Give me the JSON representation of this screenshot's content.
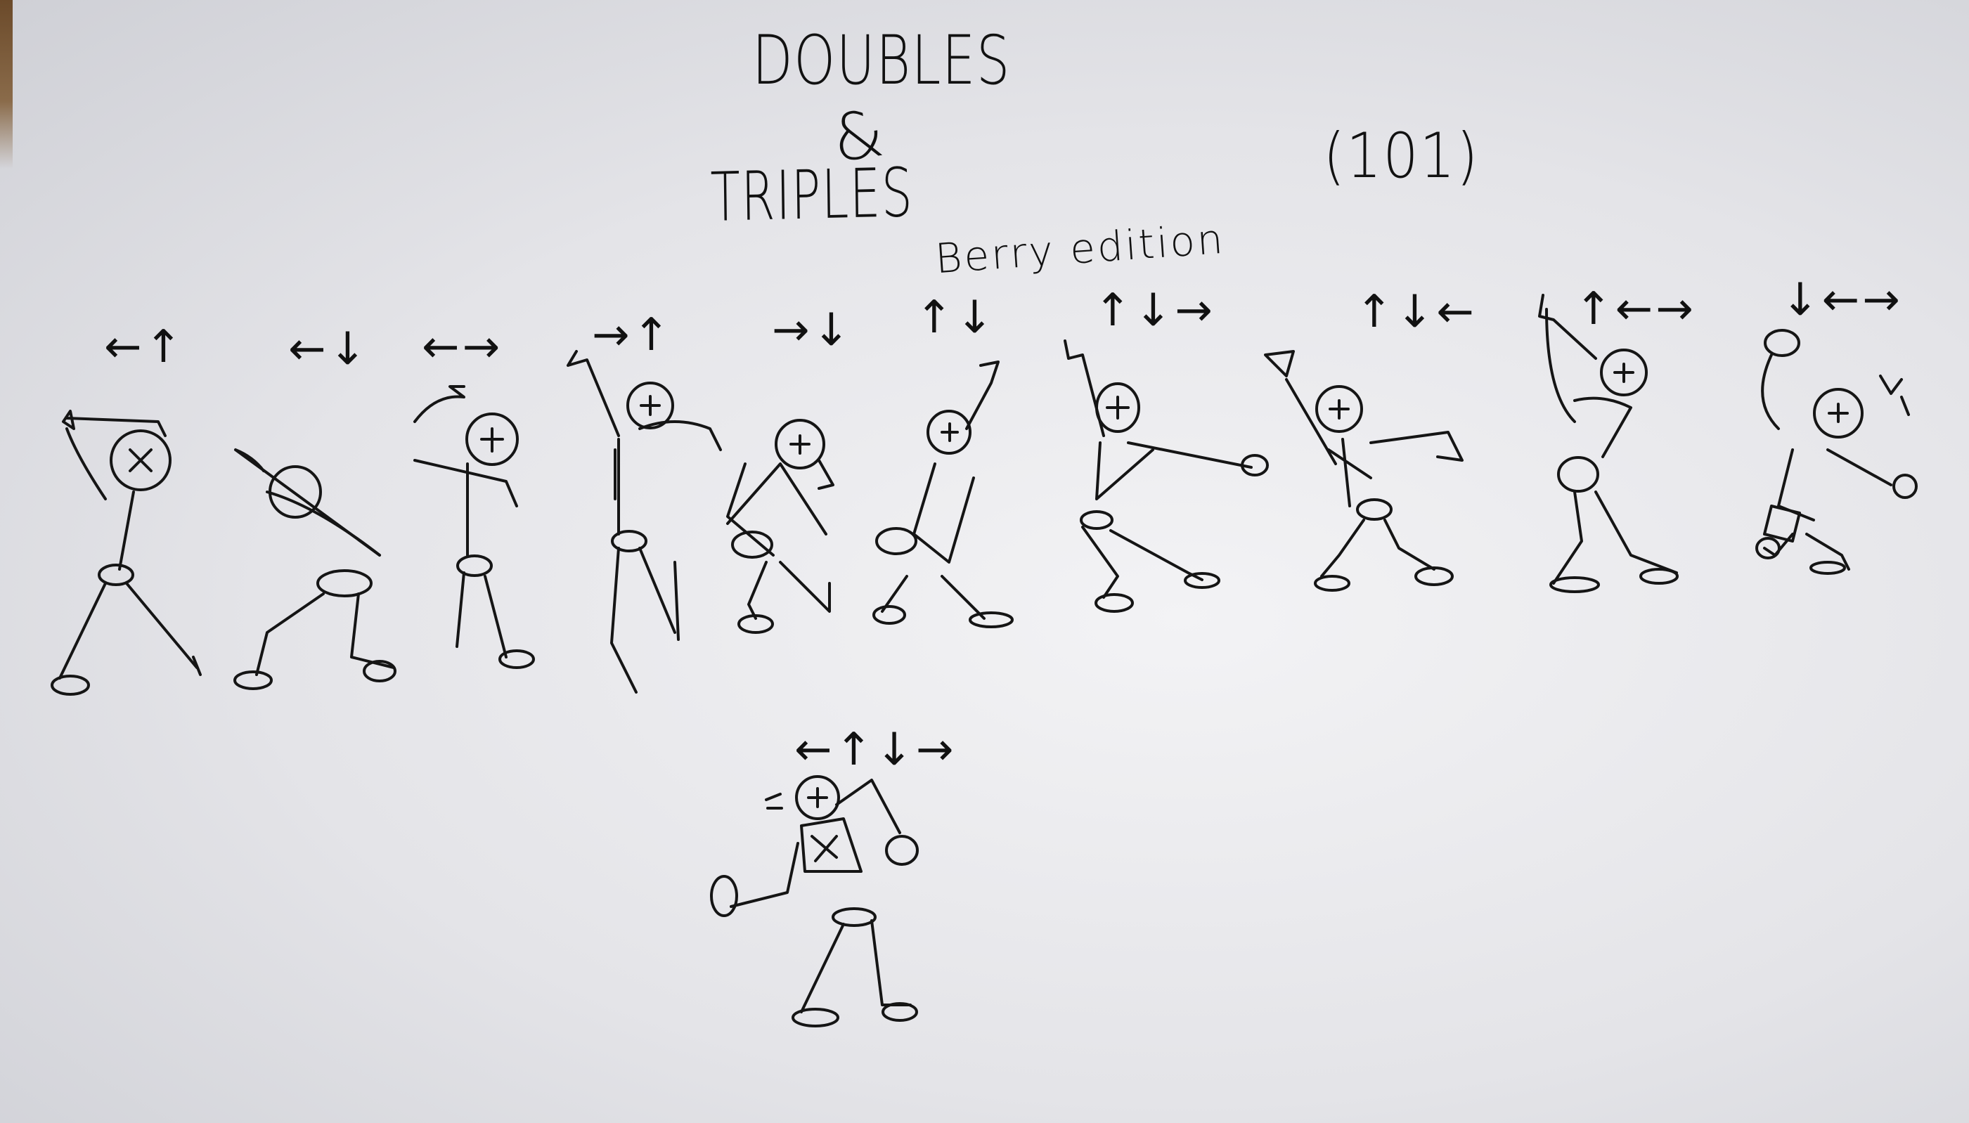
{
  "sheet": {
    "title_line1": "DOUBLES",
    "title_ampersand": "&",
    "title_line2": "TRIPLES",
    "counter": "(101)",
    "edition": "Berry edition"
  },
  "poses": [
    {
      "arrows": "←↑"
    },
    {
      "arrows": "←↓"
    },
    {
      "arrows": "←→"
    },
    {
      "arrows": "→↑"
    },
    {
      "arrows": "→↓"
    },
    {
      "arrows": "↑↓"
    },
    {
      "arrows": "↑↓→"
    },
    {
      "arrows": "↑↓←"
    },
    {
      "arrows": "↑←→"
    },
    {
      "arrows": "↓←→"
    },
    {
      "arrows": "←↑↓→"
    }
  ],
  "colors": {
    "ink": "#151515",
    "paper": "#ebebee"
  }
}
